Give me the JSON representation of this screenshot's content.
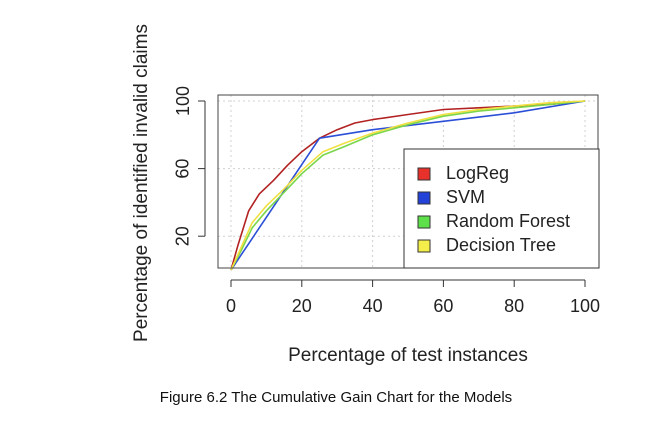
{
  "chart_data": {
    "type": "line",
    "title": "",
    "xlabel": "Percentage of test instances",
    "ylabel": "Percentage of identified invalid claims",
    "xlim": [
      0,
      100
    ],
    "ylim": [
      0,
      100
    ],
    "xticks": [
      0,
      20,
      40,
      60,
      80,
      100
    ],
    "yticks": [
      20,
      60,
      100
    ],
    "grid": true,
    "legend_position": "bottom-right",
    "series": [
      {
        "name": "LogReg",
        "color": "#b22222",
        "x": [
          0,
          2,
          5,
          8,
          12,
          16,
          20,
          25,
          30,
          35,
          40,
          50,
          60,
          70,
          80,
          90,
          100
        ],
        "y": [
          0,
          15,
          35,
          45,
          53,
          62,
          70,
          78,
          83,
          87,
          89,
          92,
          95,
          96,
          97,
          98,
          100
        ]
      },
      {
        "name": "SVM",
        "color": "#2b4fd6",
        "x": [
          0,
          25,
          40,
          60,
          80,
          100
        ],
        "y": [
          0,
          78,
          83,
          88,
          93,
          100
        ]
      },
      {
        "name": "Random Forest",
        "color": "#7ad64a",
        "x": [
          0,
          3,
          6,
          10,
          15,
          20,
          26,
          32,
          40,
          50,
          60,
          70,
          80,
          90,
          100
        ],
        "y": [
          0,
          12,
          25,
          35,
          46,
          57,
          68,
          73,
          80,
          86,
          91,
          94,
          96,
          98,
          100
        ]
      },
      {
        "name": "Decision Tree",
        "color": "#f0e040",
        "x": [
          0,
          3,
          6,
          10,
          15,
          20,
          26,
          32,
          40,
          50,
          60,
          70,
          80,
          90,
          100
        ],
        "y": [
          0,
          14,
          28,
          38,
          48,
          59,
          70,
          75,
          81,
          87,
          92,
          95,
          97,
          99,
          100
        ]
      }
    ]
  },
  "legend": {
    "items": [
      {
        "label": "LogReg",
        "swatch": "#e8312b"
      },
      {
        "label": "SVM",
        "swatch": "#2342d8"
      },
      {
        "label": "Random Forest",
        "swatch": "#5ee04a"
      },
      {
        "label": "Decision Tree",
        "swatch": "#f3ee4a"
      }
    ]
  },
  "caption": "Figure 6.2 The Cumulative Gain Chart for the Models"
}
